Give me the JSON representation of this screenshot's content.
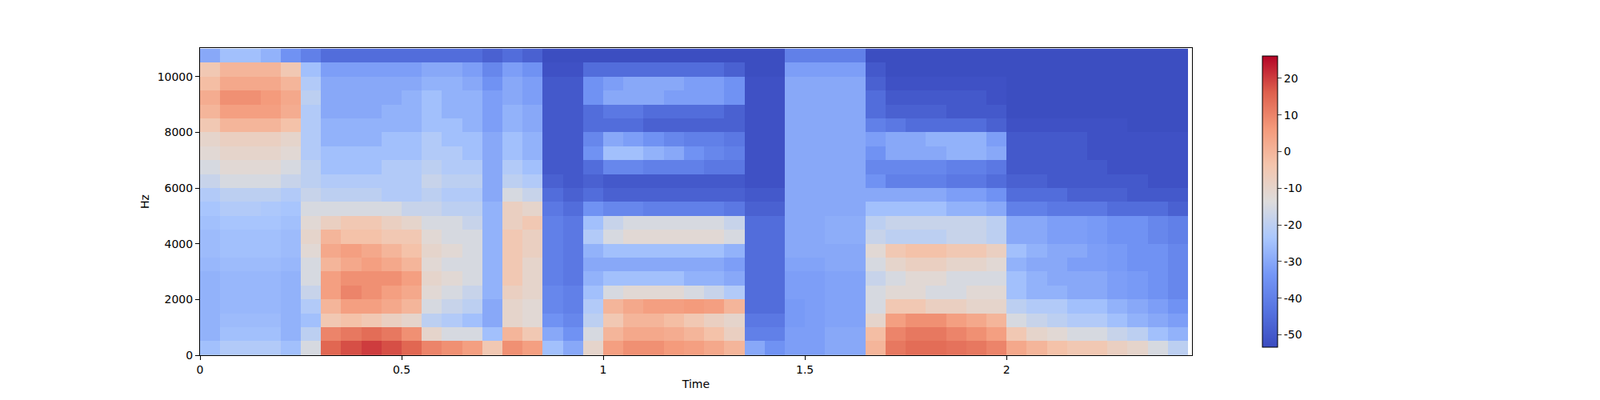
{
  "chart_data": {
    "type": "heatmap",
    "x_label": "Time",
    "y_label": "Hz",
    "xlim": [
      0,
      2.46
    ],
    "ylim": [
      0,
      11025
    ],
    "xticks": [
      0,
      0.5,
      1,
      1.5,
      2
    ],
    "yticks": [
      0,
      2000,
      4000,
      6000,
      8000,
      10000
    ],
    "colorbar": {
      "range": [
        -53.4,
        26.1
      ],
      "ticks": [
        -50,
        -40,
        -30,
        -20,
        -10,
        0,
        10,
        20
      ]
    },
    "x": [
      0.025,
      0.075,
      0.125,
      0.175,
      0.225,
      0.275,
      0.325,
      0.375,
      0.425,
      0.475,
      0.525,
      0.575,
      0.625,
      0.675,
      0.725,
      0.775,
      0.825,
      0.875,
      0.925,
      0.975,
      1.025,
      1.075,
      1.125,
      1.175,
      1.225,
      1.275,
      1.325,
      1.375,
      1.425,
      1.475,
      1.525,
      1.575,
      1.625,
      1.675,
      1.725,
      1.775,
      1.825,
      1.875,
      1.925,
      1.975,
      2.025,
      2.075,
      2.125,
      2.175,
      2.225,
      2.275,
      2.325,
      2.375,
      2.425
    ],
    "y": [
      250,
      750,
      1250,
      1750,
      2250,
      2750,
      3250,
      3750,
      4250,
      4750,
      5250,
      5750,
      6250,
      6750,
      7250,
      7750,
      8250,
      8750,
      9250,
      9750,
      10250,
      10750
    ],
    "z": [
      [
        -25,
        -22,
        -22,
        -22,
        -25,
        -15,
        15,
        18,
        20,
        18,
        15,
        10,
        8,
        5,
        -5,
        8,
        5,
        -25,
        -30,
        -10,
        5,
        8,
        8,
        6,
        5,
        3,
        0,
        -30,
        -35,
        -32,
        -32,
        -30,
        -30,
        0,
        12,
        14,
        14,
        13,
        12,
        10,
        3,
        0,
        -3,
        -5,
        -5,
        -8,
        -10,
        -15,
        -20
      ],
      [
        -28,
        -25,
        -25,
        -25,
        -28,
        -20,
        10,
        12,
        14,
        12,
        8,
        -10,
        -15,
        -15,
        -25,
        0,
        -5,
        -30,
        -35,
        -15,
        0,
        3,
        3,
        2,
        0,
        -3,
        -8,
        -40,
        -40,
        -32,
        -32,
        -30,
        -30,
        -2,
        10,
        12,
        12,
        10,
        8,
        5,
        -5,
        -10,
        -12,
        -15,
        -15,
        -18,
        -20,
        -25,
        -28
      ],
      [
        -28,
        -26,
        -26,
        -26,
        -28,
        -25,
        -5,
        -3,
        -5,
        -8,
        -10,
        -20,
        -22,
        -25,
        -30,
        -10,
        -12,
        -35,
        -38,
        -20,
        -5,
        0,
        0,
        -2,
        -5,
        -8,
        -10,
        -42,
        -42,
        -33,
        -32,
        -31,
        -31,
        -10,
        5,
        8,
        8,
        5,
        3,
        0,
        -15,
        -18,
        -20,
        -22,
        -22,
        -25,
        -28,
        -30,
        -32
      ],
      [
        -28,
        -27,
        -27,
        -27,
        -28,
        -22,
        0,
        5,
        5,
        3,
        0,
        -15,
        -18,
        -20,
        -30,
        -10,
        -12,
        -38,
        -40,
        -22,
        0,
        3,
        5,
        5,
        6,
        5,
        0,
        -45,
        -45,
        -33,
        -32,
        -31,
        -31,
        -15,
        -5,
        -5,
        -8,
        -8,
        -10,
        -10,
        -20,
        -22,
        -22,
        -25,
        -25,
        -28,
        -30,
        -32,
        -35
      ],
      [
        -28,
        -27,
        -27,
        -27,
        -28,
        -18,
        5,
        10,
        8,
        5,
        3,
        -12,
        -15,
        -18,
        -28,
        -8,
        -10,
        -38,
        -40,
        -25,
        -15,
        -12,
        -12,
        -12,
        -15,
        -18,
        -22,
        -45,
        -45,
        -32,
        -32,
        -31,
        -31,
        -15,
        -12,
        -12,
        -15,
        -15,
        -12,
        -12,
        -25,
        -28,
        -28,
        -30,
        -30,
        -32,
        -33,
        -35,
        -38
      ],
      [
        -28,
        -27,
        -27,
        -27,
        -28,
        -15,
        5,
        8,
        8,
        8,
        5,
        -10,
        -12,
        -15,
        -28,
        -5,
        -10,
        -40,
        -42,
        -28,
        -25,
        -25,
        -25,
        -25,
        -28,
        -28,
        -30,
        -45,
        -45,
        -32,
        -32,
        -31,
        -31,
        -18,
        -15,
        -12,
        -12,
        -15,
        -15,
        -15,
        -25,
        -28,
        -30,
        -30,
        -30,
        -32,
        -33,
        -35,
        -38
      ],
      [
        -27,
        -26,
        -26,
        -26,
        -27,
        -15,
        0,
        3,
        5,
        3,
        0,
        -12,
        -15,
        -15,
        -28,
        -5,
        -10,
        -40,
        -42,
        -30,
        -30,
        -30,
        -30,
        -30,
        -30,
        -30,
        -32,
        -45,
        -45,
        -31,
        -31,
        -30,
        -30,
        -15,
        -10,
        -8,
        -8,
        -10,
        -10,
        -12,
        -28,
        -30,
        -30,
        -32,
        -32,
        -33,
        -35,
        -35,
        -38
      ],
      [
        -26,
        -25,
        -25,
        -25,
        -26,
        -12,
        3,
        5,
        3,
        0,
        -3,
        -10,
        -12,
        -15,
        -28,
        -5,
        -8,
        -40,
        -42,
        -28,
        -25,
        -25,
        -25,
        -25,
        -25,
        -25,
        -28,
        -45,
        -45,
        -30,
        -30,
        -30,
        -30,
        -12,
        -5,
        -3,
        -3,
        -5,
        -5,
        -8,
        -25,
        -28,
        -30,
        -30,
        -32,
        -33,
        -35,
        -35,
        -38
      ],
      [
        -26,
        -25,
        -25,
        -25,
        -26,
        -10,
        0,
        -3,
        -3,
        -5,
        -5,
        -12,
        -15,
        -15,
        -28,
        -5,
        -8,
        -40,
        -42,
        -22,
        -15,
        -12,
        -12,
        -12,
        -12,
        -12,
        -15,
        -45,
        -45,
        -30,
        -30,
        -29,
        -29,
        -18,
        -20,
        -20,
        -20,
        -18,
        -18,
        -20,
        -30,
        -30,
        -32,
        -32,
        -33,
        -35,
        -35,
        -38,
        -40
      ],
      [
        -25,
        -24,
        -24,
        -24,
        -25,
        -12,
        -8,
        -5,
        -5,
        -8,
        -10,
        -15,
        -15,
        -18,
        -28,
        -8,
        -5,
        -40,
        -42,
        -25,
        -18,
        -15,
        -15,
        -15,
        -15,
        -15,
        -18,
        -45,
        -45,
        -30,
        -30,
        -29,
        -29,
        -20,
        -18,
        -18,
        -18,
        -18,
        -18,
        -20,
        -30,
        -30,
        -32,
        -32,
        -33,
        -35,
        -35,
        -38,
        -40
      ],
      [
        -24,
        -22,
        -22,
        -23,
        -24,
        -15,
        -15,
        -15,
        -15,
        -15,
        -18,
        -18,
        -20,
        -20,
        -28,
        -8,
        -10,
        -42,
        -45,
        -35,
        -38,
        -38,
        -40,
        -40,
        -40,
        -40,
        -42,
        -48,
        -48,
        -30,
        -30,
        -30,
        -30,
        -25,
        -25,
        -25,
        -25,
        -28,
        -28,
        -30,
        -40,
        -40,
        -42,
        -42,
        -42,
        -45,
        -45,
        -45,
        -48
      ],
      [
        -22,
        -20,
        -20,
        -20,
        -22,
        -18,
        -20,
        -20,
        -20,
        -22,
        -22,
        -20,
        -22,
        -22,
        -30,
        -15,
        -18,
        -45,
        -48,
        -45,
        -48,
        -48,
        -48,
        -48,
        -48,
        -48,
        -48,
        -50,
        -50,
        -30,
        -30,
        -30,
        -30,
        -30,
        -30,
        -30,
        -30,
        -32,
        -32,
        -35,
        -45,
        -45,
        -45,
        -48,
        -48,
        -48,
        -50,
        -50,
        -50
      ],
      [
        -18,
        -15,
        -15,
        -15,
        -18,
        -20,
        -22,
        -22,
        -22,
        -22,
        -22,
        -18,
        -20,
        -20,
        -30,
        -20,
        -22,
        -48,
        -50,
        -48,
        -50,
        -50,
        -50,
        -50,
        -50,
        -50,
        -50,
        -52,
        -52,
        -30,
        -30,
        -30,
        -30,
        -35,
        -40,
        -40,
        -40,
        -42,
        -42,
        -45,
        -48,
        -48,
        -50,
        -50,
        -50,
        -50,
        -50,
        -52,
        -52
      ],
      [
        -15,
        -12,
        -12,
        -12,
        -15,
        -20,
        -25,
        -25,
        -25,
        -22,
        -22,
        -20,
        -22,
        -22,
        -30,
        -22,
        -25,
        -50,
        -50,
        -45,
        -38,
        -38,
        -40,
        -40,
        -40,
        -42,
        -42,
        -52,
        -52,
        -30,
        -30,
        -30,
        -30,
        -38,
        -38,
        -38,
        -38,
        -40,
        -40,
        -42,
        -50,
        -50,
        -50,
        -50,
        -50,
        -52,
        -52,
        -52,
        -52
      ],
      [
        -12,
        -10,
        -10,
        -10,
        -12,
        -22,
        -25,
        -25,
        -25,
        -25,
        -25,
        -22,
        -22,
        -25,
        -30,
        -25,
        -28,
        -50,
        -50,
        -35,
        -25,
        -25,
        -28,
        -30,
        -35,
        -38,
        -40,
        -52,
        -52,
        -30,
        -30,
        -30,
        -30,
        -35,
        -30,
        -30,
        -30,
        -28,
        -28,
        -30,
        -50,
        -50,
        -50,
        -50,
        -52,
        -52,
        -52,
        -52,
        -52
      ],
      [
        -10,
        -8,
        -8,
        -8,
        -10,
        -22,
        -28,
        -28,
        -28,
        -25,
        -25,
        -22,
        -25,
        -25,
        -30,
        -25,
        -28,
        -50,
        -50,
        -38,
        -30,
        -32,
        -35,
        -38,
        -40,
        -40,
        -42,
        -52,
        -52,
        -30,
        -30,
        -30,
        -30,
        -32,
        -30,
        -30,
        -28,
        -28,
        -28,
        -32,
        -50,
        -50,
        -50,
        -50,
        -52,
        -52,
        -52,
        -52,
        -52
      ],
      [
        -5,
        0,
        0,
        0,
        -3,
        -22,
        -28,
        -28,
        -28,
        -28,
        -28,
        -25,
        -25,
        -28,
        -32,
        -28,
        -30,
        -50,
        -50,
        -45,
        -45,
        -45,
        -48,
        -48,
        -48,
        -48,
        -48,
        -52,
        -52,
        -30,
        -30,
        -30,
        -30,
        -40,
        -42,
        -45,
        -45,
        -45,
        -45,
        -48,
        -52,
        -52,
        -52,
        -52,
        -52,
        -52,
        -53,
        -53,
        -53
      ],
      [
        0,
        5,
        5,
        5,
        2,
        -22,
        -30,
        -30,
        -30,
        -28,
        -28,
        -25,
        -28,
        -28,
        -32,
        -28,
        -30,
        -50,
        -50,
        -45,
        -42,
        -42,
        -45,
        -45,
        -45,
        -45,
        -48,
        -52,
        -52,
        -30,
        -30,
        -30,
        -30,
        -45,
        -48,
        -48,
        -48,
        -50,
        -50,
        -50,
        -53,
        -53,
        -53,
        -53,
        -53,
        -53,
        -53,
        -53,
        -53
      ],
      [
        2,
        8,
        8,
        6,
        3,
        -20,
        -30,
        -30,
        -30,
        -30,
        -28,
        -25,
        -28,
        -28,
        -32,
        -30,
        -32,
        -50,
        -50,
        -35,
        -30,
        -30,
        -30,
        -32,
        -32,
        -32,
        -35,
        -52,
        -52,
        -30,
        -30,
        -30,
        -30,
        -45,
        -50,
        -50,
        -50,
        -50,
        -50,
        -52,
        -53,
        -53,
        -53,
        -53,
        -53,
        -53,
        -53,
        -53,
        -53
      ],
      [
        -2,
        3,
        3,
        3,
        0,
        -22,
        -30,
        -30,
        -30,
        -30,
        -30,
        -28,
        -28,
        -30,
        -35,
        -30,
        -32,
        -50,
        -50,
        -35,
        -32,
        -30,
        -30,
        -30,
        -32,
        -32,
        -35,
        -52,
        -52,
        -30,
        -30,
        -30,
        -30,
        -48,
        -52,
        -52,
        -52,
        -52,
        -52,
        -52,
        -53,
        -53,
        -53,
        -53,
        -53,
        -53,
        -53,
        -53,
        -53
      ],
      [
        -5,
        0,
        0,
        0,
        -5,
        -25,
        -32,
        -32,
        -32,
        -32,
        -32,
        -30,
        -30,
        -32,
        -38,
        -32,
        -35,
        -52,
        -52,
        -45,
        -45,
        -45,
        -45,
        -45,
        -45,
        -45,
        -48,
        -53,
        -53,
        -32,
        -32,
        -32,
        -32,
        -50,
        -53,
        -53,
        -53,
        -53,
        -53,
        -53,
        -53,
        -53,
        -53,
        -53,
        -53,
        -53,
        -53,
        -53,
        -53
      ],
      [
        -30,
        -25,
        -25,
        -28,
        -35,
        -40,
        -45,
        -45,
        -45,
        -45,
        -45,
        -45,
        -45,
        -45,
        -48,
        -45,
        -48,
        -53,
        -53,
        -53,
        -53,
        -53,
        -53,
        -53,
        -53,
        -53,
        -53,
        -53,
        -53,
        -40,
        -40,
        -40,
        -40,
        -53,
        -53,
        -53,
        -53,
        -53,
        -53,
        -53,
        -53,
        -53,
        -53,
        -53,
        -53,
        -53,
        -53,
        -53,
        -53
      ]
    ]
  }
}
